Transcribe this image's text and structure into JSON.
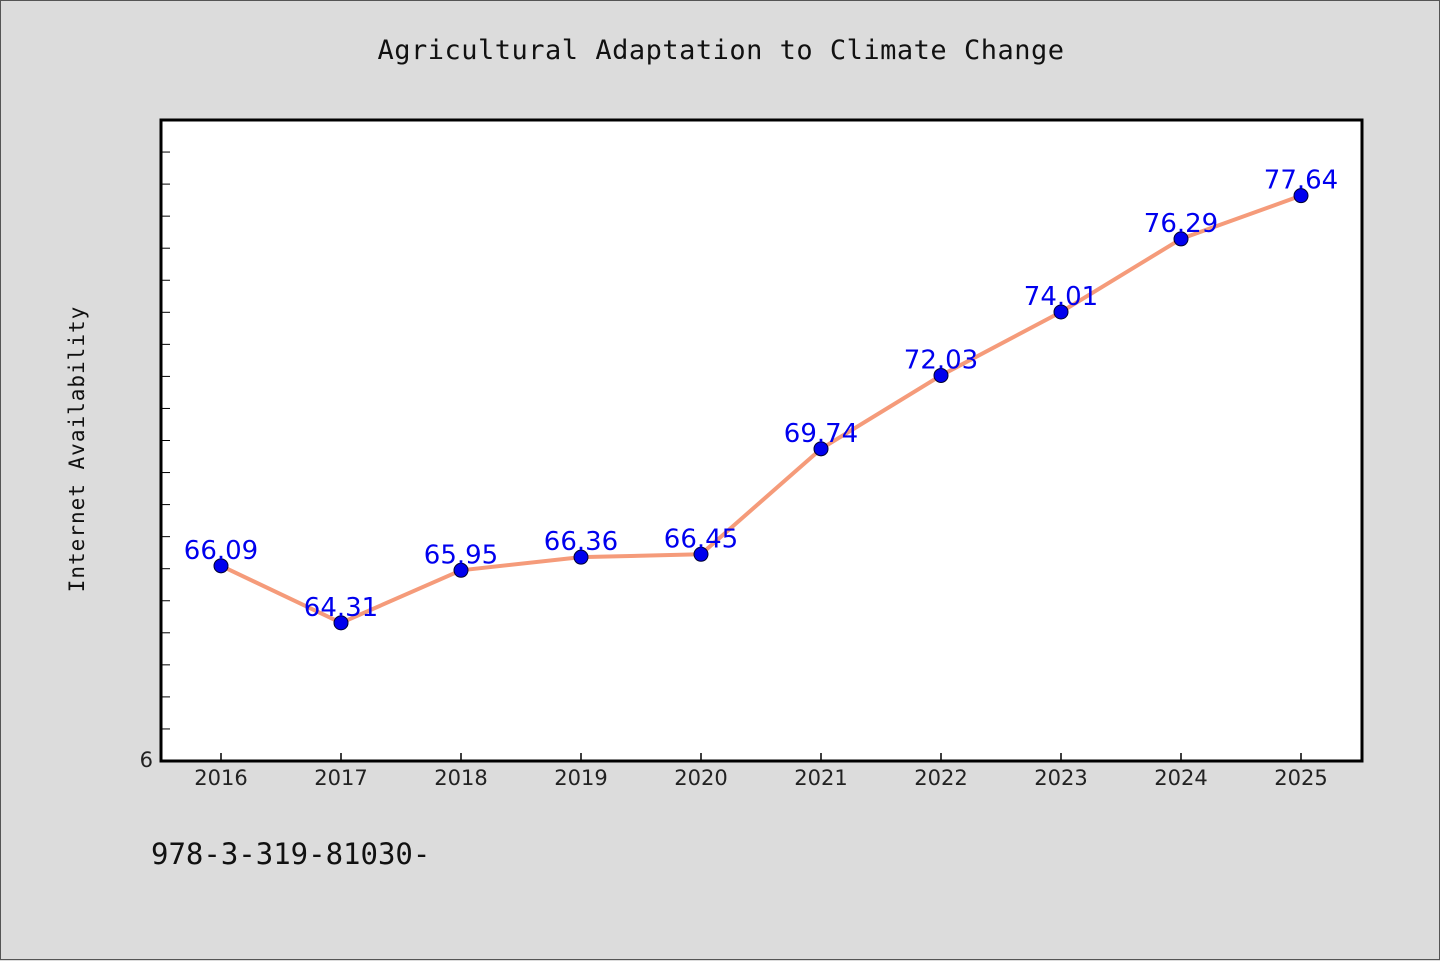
{
  "chart_data": {
    "type": "line",
    "title": "Agricultural Adaptation to Climate Change",
    "ylabel": "Internet Availability",
    "xlabel": "",
    "y_tick_labels": [
      "6"
    ],
    "x": [
      "2016",
      "2017",
      "2018",
      "2019",
      "2020",
      "2021",
      "2022",
      "2023",
      "2024",
      "2025"
    ],
    "series": [
      {
        "values": [
          66.09,
          64.31,
          65.95,
          66.36,
          66.45,
          69.74,
          72.03,
          74.01,
          76.29,
          77.64
        ],
        "data_labels": [
          "66.09",
          "64.31",
          "65.95",
          "66.36",
          "66.45",
          "69.74",
          "72.03",
          "74.01",
          "76.29",
          "77.64"
        ],
        "line_color": "#f59b7a",
        "marker_color": "#0000ee"
      }
    ],
    "ylim": [
      60,
      80
    ],
    "grid": false
  },
  "footnote": "978-3-319-81030-"
}
